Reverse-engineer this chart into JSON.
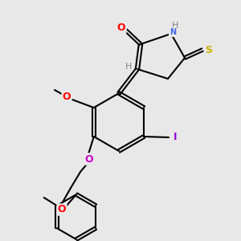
{
  "bg": "#e8e8e8",
  "bond_color": "#000000",
  "lw": 1.5,
  "colors": {
    "O": "#ff0000",
    "O2": "#cc00cc",
    "N": "#4169e1",
    "S_exo": "#c8b400",
    "I": "#9400d3",
    "H": "#808080",
    "C": "#000000"
  }
}
